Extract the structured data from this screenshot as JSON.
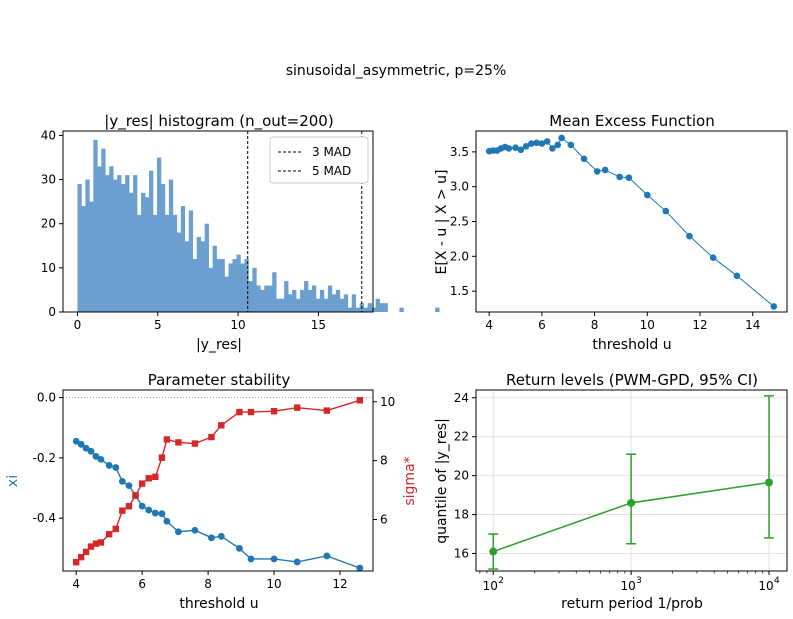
{
  "suptitle": "sinusoidal_asymmetric, p=25%",
  "colors": {
    "blue": "#1f77b4",
    "hist": "#6a9fd0",
    "red": "#d62728",
    "green": "#2ca02c",
    "grid": "#dddddd"
  },
  "chart_data": [
    {
      "type": "bar",
      "title": "|y_res| histogram (n_out=200)",
      "xlabel": "|y_res|",
      "ylabel": "",
      "xlim": [
        -0.9,
        18.4
      ],
      "ylim": [
        0,
        41
      ],
      "xticks": [
        0,
        5,
        10,
        15
      ],
      "yticks": [
        0,
        10,
        20,
        30,
        40
      ],
      "bin_start": 0,
      "bin_width": 0.2475,
      "values": [
        29,
        24,
        30,
        25,
        39,
        33,
        37,
        31,
        33,
        30,
        31,
        29,
        31,
        27,
        31,
        22,
        27,
        26,
        32,
        22,
        35,
        29,
        22,
        30,
        22,
        18,
        24,
        16,
        23,
        12,
        17,
        16,
        20,
        10,
        15,
        12,
        12,
        8,
        11,
        12,
        13,
        11,
        12,
        7,
        10,
        6,
        5,
        6,
        6,
        9,
        3,
        3,
        7,
        4,
        5,
        3,
        5,
        7,
        5,
        6,
        3,
        5,
        3,
        6,
        4,
        5,
        3,
        4,
        1,
        4,
        1,
        2,
        1,
        2,
        1,
        3,
        2,
        2,
        0,
        0,
        0,
        1,
        0,
        0,
        0,
        0,
        0,
        0,
        0,
        0,
        1,
        0,
        0,
        0,
        0,
        0,
        0,
        0,
        0,
        0,
        0,
        0,
        0,
        0,
        0,
        0,
        0,
        0,
        0,
        0,
        0,
        0,
        0,
        0,
        0,
        0,
        0,
        0,
        0,
        0,
        0,
        0,
        0,
        0,
        0,
        0,
        0,
        0,
        0,
        0,
        0,
        0,
        0,
        0,
        0,
        0,
        0,
        0,
        0,
        0,
        0,
        0,
        0,
        0,
        0,
        0,
        0,
        0,
        0,
        0,
        0,
        0,
        0,
        0,
        0,
        0,
        0,
        0,
        0,
        0,
        0,
        0,
        0,
        0,
        0,
        0,
        0,
        0,
        0,
        0,
        0,
        0,
        0,
        0,
        0,
        0,
        0,
        0,
        0,
        0,
        0,
        0,
        0
      ],
      "vlines": [
        {
          "name": "3 MAD",
          "x": 10.6
        },
        {
          "name": "5 MAD",
          "x": 17.7
        }
      ],
      "legend_position": "top-right"
    },
    {
      "type": "line",
      "title": "Mean Excess Function",
      "xlabel": "threshold u",
      "ylabel": "E[X - u | X > u]",
      "xlim": [
        3.5,
        15.3
      ],
      "ylim": [
        1.2,
        3.8
      ],
      "xticks": [
        4,
        6,
        8,
        10,
        12,
        14
      ],
      "yticks": [
        1.5,
        2.0,
        2.5,
        3.0,
        3.5
      ],
      "x": [
        4.0,
        4.15,
        4.3,
        4.45,
        4.6,
        4.75,
        5.0,
        5.2,
        5.4,
        5.6,
        5.8,
        6.0,
        6.2,
        6.4,
        6.6,
        6.75,
        7.1,
        7.6,
        8.1,
        8.4,
        8.95,
        9.3,
        10.0,
        10.7,
        11.6,
        12.5,
        13.4,
        14.8
      ],
      "y": [
        3.51,
        3.52,
        3.52,
        3.55,
        3.57,
        3.55,
        3.56,
        3.53,
        3.58,
        3.62,
        3.63,
        3.62,
        3.65,
        3.55,
        3.6,
        3.7,
        3.6,
        3.4,
        3.22,
        3.24,
        3.14,
        3.13,
        2.88,
        2.65,
        2.29,
        1.98,
        1.72,
        1.28
      ]
    },
    {
      "type": "line",
      "title": "Parameter stability",
      "xlabel": "threshold u",
      "xlim": [
        3.6,
        13.0
      ],
      "xticks": [
        4,
        6,
        8,
        10,
        12
      ],
      "y_left": {
        "label": "xi",
        "ylim": [
          -0.575,
          0.025
        ],
        "ticks": [
          0.0,
          -0.2,
          -0.4
        ]
      },
      "y_right": {
        "label": "sigma*",
        "ylim": [
          4.25,
          10.4
        ],
        "ticks": [
          6,
          8,
          10
        ]
      },
      "reference_line": 0,
      "series": [
        {
          "name": "xi",
          "axis": "left",
          "x": [
            4.0,
            4.15,
            4.3,
            4.45,
            4.6,
            4.75,
            5.0,
            5.2,
            5.4,
            5.6,
            5.8,
            6.0,
            6.2,
            6.4,
            6.6,
            6.75,
            7.1,
            7.6,
            8.1,
            8.4,
            8.95,
            9.3,
            10.0,
            10.7,
            11.6,
            12.6
          ],
          "values": [
            -0.145,
            -0.155,
            -0.168,
            -0.178,
            -0.195,
            -0.205,
            -0.225,
            -0.232,
            -0.278,
            -0.292,
            -0.325,
            -0.36,
            -0.373,
            -0.383,
            -0.385,
            -0.41,
            -0.445,
            -0.44,
            -0.465,
            -0.46,
            -0.5,
            -0.535,
            -0.535,
            -0.545,
            -0.525,
            -0.565
          ]
        },
        {
          "name": "sigma*",
          "axis": "right",
          "x": [
            4.0,
            4.15,
            4.3,
            4.45,
            4.6,
            4.75,
            5.0,
            5.2,
            5.4,
            5.6,
            5.8,
            6.0,
            6.2,
            6.4,
            6.6,
            6.75,
            7.1,
            7.6,
            8.1,
            8.4,
            8.95,
            9.3,
            10.0,
            10.7,
            11.6,
            12.6
          ],
          "values": [
            4.55,
            4.72,
            4.9,
            5.08,
            5.18,
            5.22,
            5.5,
            5.68,
            6.3,
            6.45,
            6.82,
            7.22,
            7.4,
            7.45,
            8.1,
            8.72,
            8.62,
            8.58,
            8.8,
            9.2,
            9.65,
            9.65,
            9.68,
            9.8,
            9.7,
            10.05
          ]
        }
      ]
    },
    {
      "type": "line",
      "title": "Return levels (PWM-GPD, 95% CI)",
      "xlabel": "return period 1/prob",
      "ylabel": "quantile of |y_res|",
      "xscale": "log",
      "xlim": [
        75,
        13500
      ],
      "ylim": [
        15.1,
        24.4
      ],
      "xticks": [
        100,
        1000,
        10000
      ],
      "xtick_labels": [
        "10",
        "10",
        "10"
      ],
      "xtick_exponents": [
        "2",
        "3",
        "4"
      ],
      "yticks": [
        16,
        18,
        20,
        22,
        24
      ],
      "x": [
        100,
        1000,
        10000
      ],
      "y": [
        16.1,
        18.6,
        19.65
      ],
      "ci_low": [
        15.2,
        16.5,
        16.8
      ],
      "ci_high": [
        17.0,
        21.1,
        24.1
      ]
    }
  ]
}
